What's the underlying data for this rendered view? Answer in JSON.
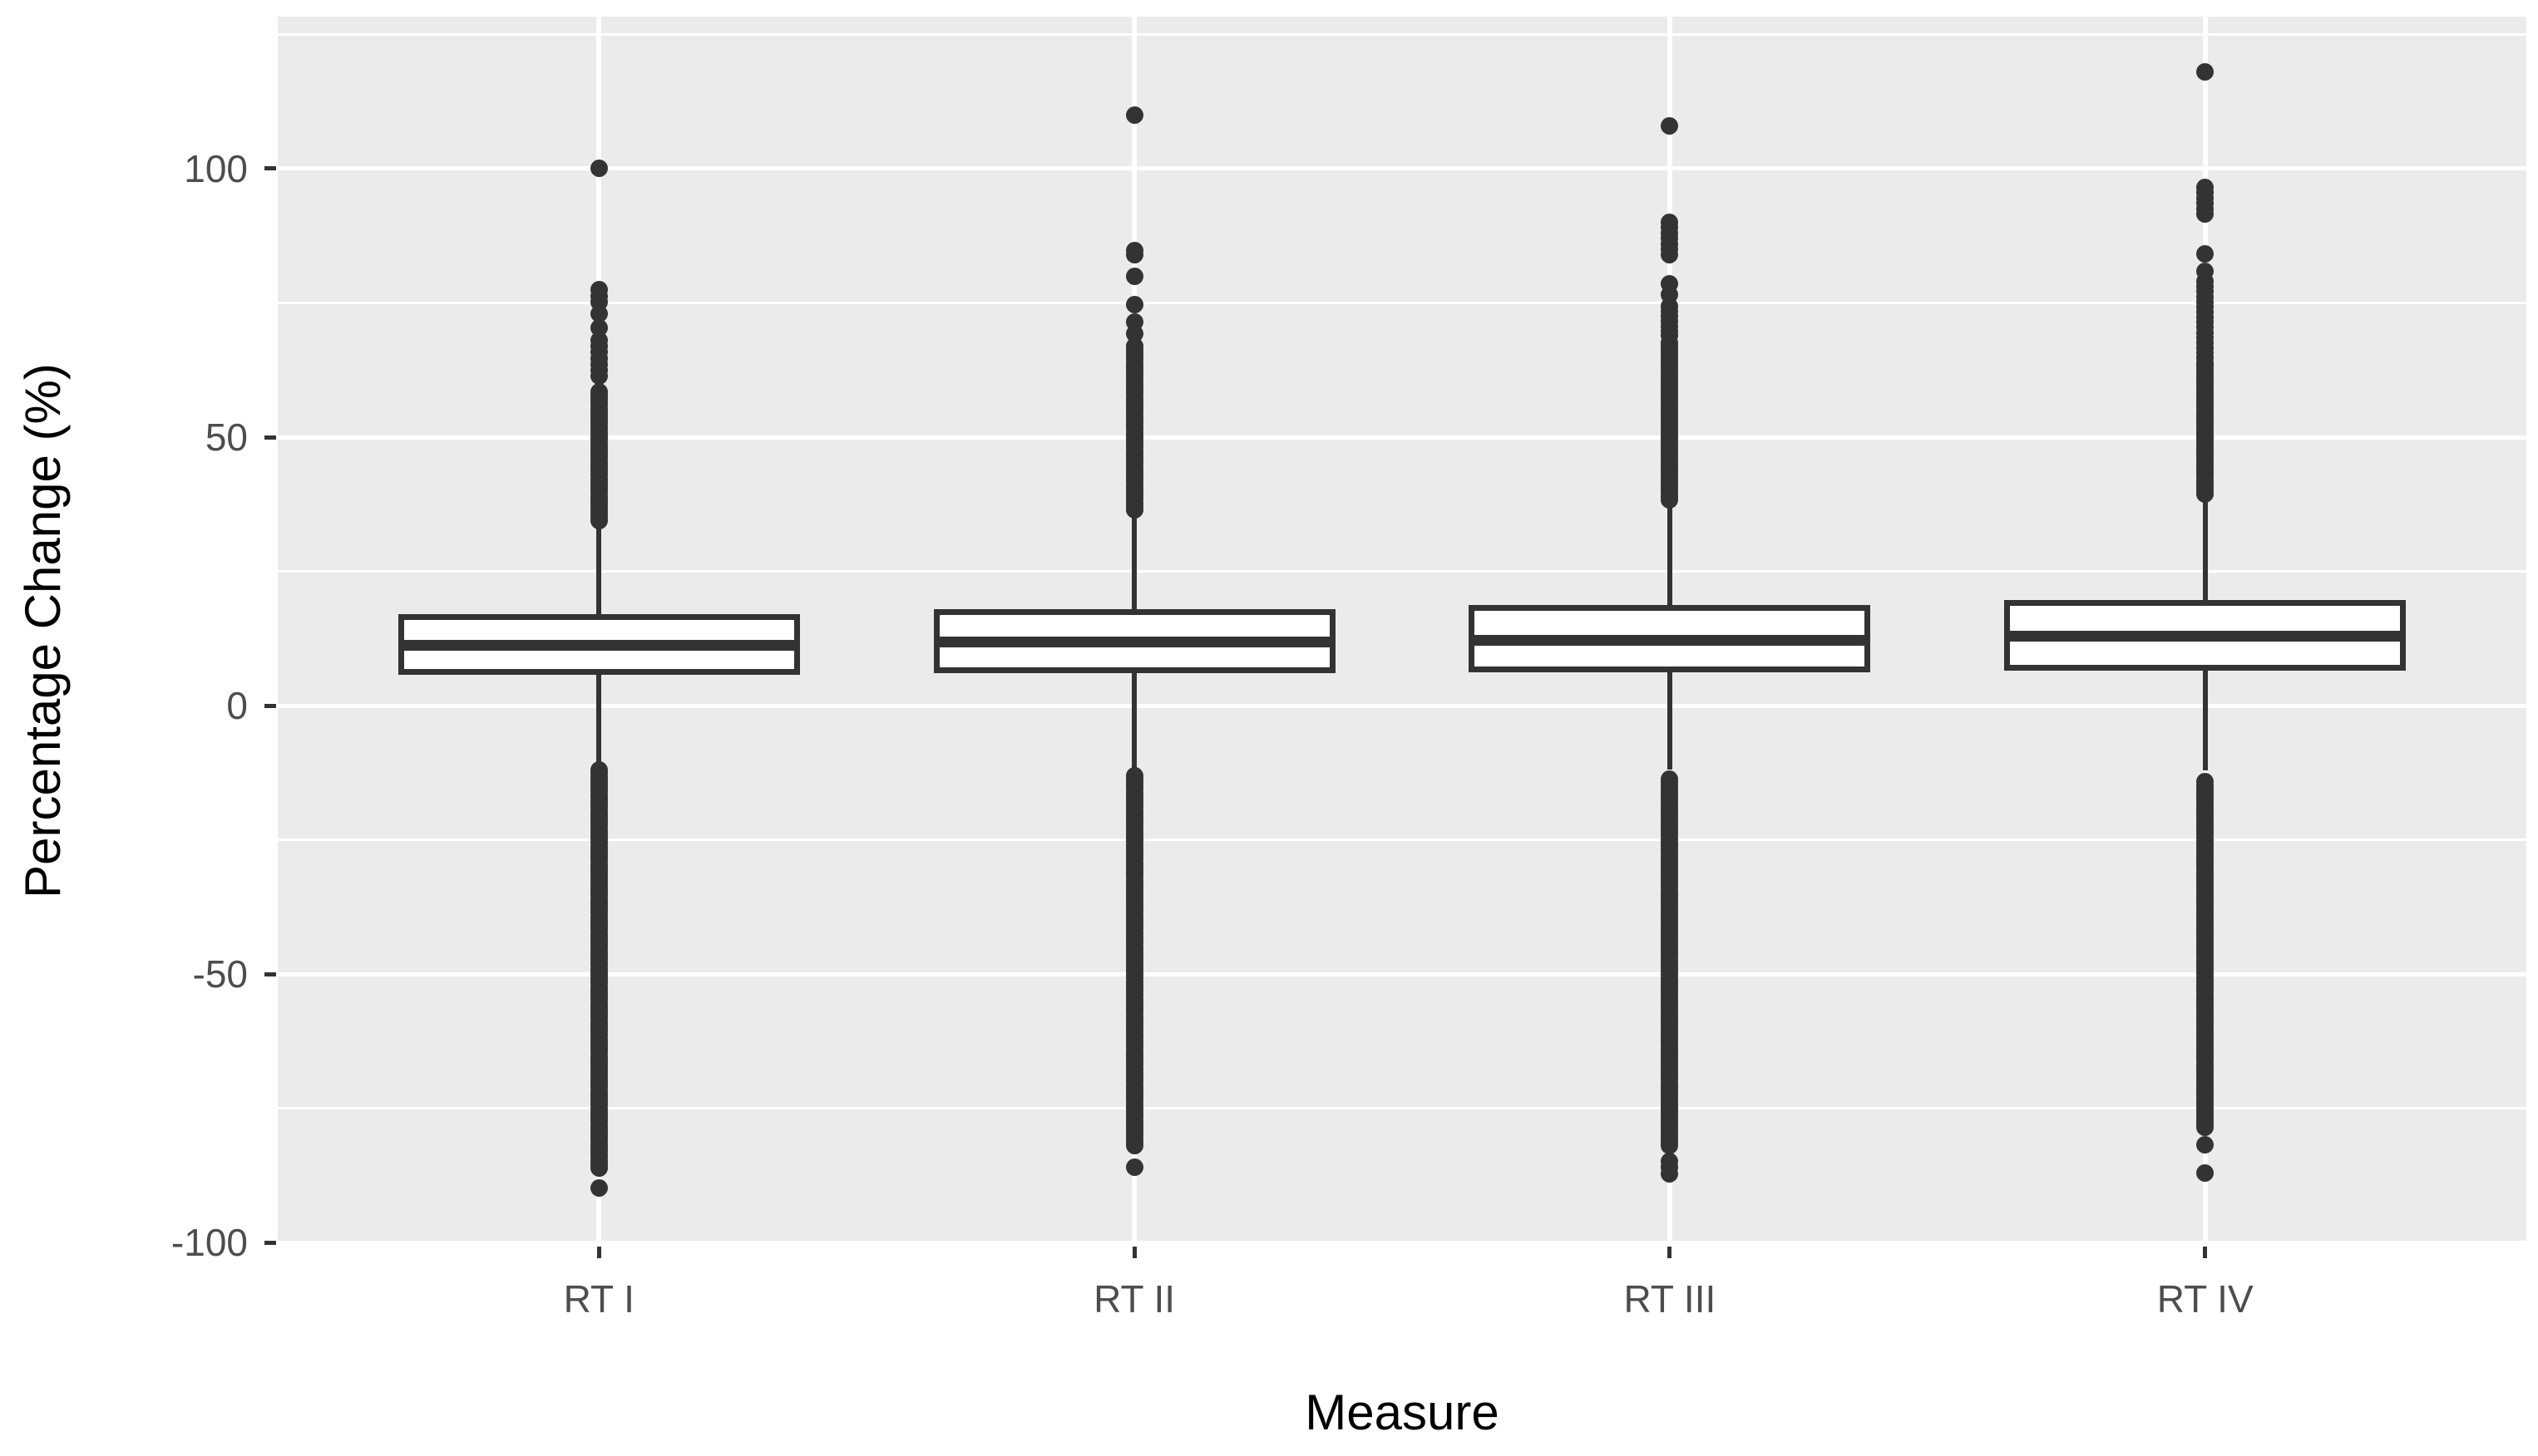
{
  "chart_data": {
    "type": "boxplot",
    "title": "",
    "xlabel": "Measure",
    "ylabel": "Percentage Change (%)",
    "categories": [
      "RT I",
      "RT II",
      "RT III",
      "RT IV"
    ],
    "y_ticks": [
      100,
      50,
      0,
      -50,
      -100
    ],
    "y_tick_labels": [
      "100",
      "50",
      "0",
      "-50",
      "-100"
    ],
    "y_minor_ticks": [
      125,
      75,
      25,
      -25,
      -75
    ],
    "ylim": [
      -100.4,
      128.3
    ],
    "grid": "on",
    "legend": "none",
    "series": [
      {
        "label": "RT I",
        "q1": 5.8,
        "median": 11.2,
        "q3": 17.1,
        "whisker_low": -10.5,
        "whisker_high": 33.5,
        "outlier_runs": [
          {
            "from": 77.5,
            "to": 75.0,
            "step": 1.2
          },
          {
            "from": 68.0,
            "to": 61.0,
            "step": 1.1
          },
          {
            "from": 58.5,
            "to": 34.2,
            "step": 0.65
          },
          {
            "from": -12.0,
            "to": -86.5,
            "step": 0.65
          }
        ],
        "outlier_points": [
          100,
          73,
          70.3,
          -89.8
        ]
      },
      {
        "label": "RT II",
        "q1": 6.1,
        "median": 11.9,
        "q3": 18.0,
        "whisker_low": -11.9,
        "whisker_high": 35.8,
        "outlier_runs": [
          {
            "from": 84.8,
            "to": 83.0,
            "step": 0.9
          },
          {
            "from": 67.0,
            "to": 35.9,
            "step": 0.65
          },
          {
            "from": -13.0,
            "to": -82.0,
            "step": 0.65
          }
        ],
        "outlier_points": [
          110,
          80,
          74.7,
          71.4,
          69.2,
          -86
        ]
      },
      {
        "label": "RT III",
        "q1": 6.2,
        "median": 12.2,
        "q3": 18.7,
        "whisker_low": -11.9,
        "whisker_high": 37.4,
        "outlier_runs": [
          {
            "from": 90.0,
            "to": 83.5,
            "step": 1.0
          },
          {
            "from": 74.3,
            "to": 68.0,
            "step": 0.9
          },
          {
            "from": 67.6,
            "to": 37.9,
            "step": 0.65
          },
          {
            "from": -13.7,
            "to": -82.0,
            "step": 0.65
          },
          {
            "from": -84.8,
            "to": -87.3,
            "step": 1.2
          }
        ],
        "outlier_points": [
          108,
          78.6,
          76.5
        ]
      },
      {
        "label": "RT IV",
        "q1": 6.5,
        "median": 12.9,
        "q3": 19.6,
        "whisker_low": -12.1,
        "whisker_high": 39.2,
        "outlier_runs": [
          {
            "from": 96.5,
            "to": 91.3,
            "step": 1.0
          },
          {
            "from": 79.0,
            "to": 63.5,
            "step": 0.95
          },
          {
            "from": 63.4,
            "to": 38.8,
            "step": 0.65
          },
          {
            "from": -14.2,
            "to": -78.6,
            "step": 0.65
          }
        ],
        "outlier_points": [
          118,
          84.1,
          80.9,
          -81.8,
          -87
        ]
      }
    ],
    "style": {
      "panel_background": "#EBEBEB",
      "grid_color": "#FFFFFF",
      "line_color": "#333333",
      "box_fill": "#FFFFFF",
      "tick_label_color": "#4D4D4D",
      "title_color": "#000000"
    }
  }
}
